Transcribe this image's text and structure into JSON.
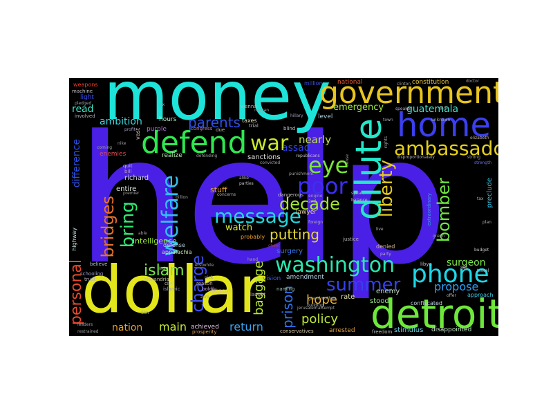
{
  "background": "#000000",
  "words": [
    {
      "text": "help",
      "color": "#4a1fe6"
    },
    {
      "text": "money",
      "color": "#1de3d8"
    },
    {
      "text": "dollar",
      "color": "#e3e61a"
    },
    {
      "text": "detroit",
      "color": "#6de83a"
    },
    {
      "text": "government",
      "color": "#e8c51e"
    },
    {
      "text": "home",
      "color": "#3b3ff0"
    },
    {
      "text": "defend",
      "color": "#2ee84f"
    },
    {
      "text": "dilute",
      "color": "#24e8c9"
    },
    {
      "text": "ambassador",
      "color": "#e6d01a"
    },
    {
      "text": "washington",
      "color": "#29e8b0"
    },
    {
      "text": "phone",
      "color": "#1ed6e6"
    },
    {
      "text": "summer",
      "color": "#3540ef"
    },
    {
      "text": "poor",
      "color": "#3c2ff0"
    },
    {
      "text": "eye",
      "color": "#7be63a"
    },
    {
      "text": "war",
      "color": "#c7e82a"
    },
    {
      "text": "welfare",
      "color": "#2fc0ee"
    },
    {
      "text": "message",
      "color": "#21d8e0"
    },
    {
      "text": "decade",
      "color": "#a6e634"
    },
    {
      "text": "liberty",
      "color": "#e6cb1e"
    },
    {
      "text": "bomber",
      "color": "#6ee83f"
    },
    {
      "text": "bring",
      "color": "#2ee874"
    },
    {
      "text": "bridges",
      "color": "#e8712a"
    },
    {
      "text": "personal",
      "color": "#e84a2a"
    },
    {
      "text": "islam",
      "color": "#7ae84a"
    },
    {
      "text": "charge",
      "color": "#3d4df0"
    },
    {
      "text": "parents",
      "color": "#2f4ee8"
    },
    {
      "text": "putting",
      "color": "#e6d830"
    },
    {
      "text": "prison",
      "color": "#2a73f0"
    },
    {
      "text": "policy",
      "color": "#c0e83a"
    },
    {
      "text": "hope",
      "color": "#e8b02a"
    },
    {
      "text": "return",
      "color": "#38a3ef"
    },
    {
      "text": "main",
      "color": "#c6e835"
    },
    {
      "text": "nation",
      "color": "#e8a02a"
    },
    {
      "text": "surgeon",
      "color": "#7ce84a"
    },
    {
      "text": "propose",
      "color": "#2d9ef0"
    },
    {
      "text": "baggage",
      "color": "#b9e833"
    },
    {
      "text": "emergency",
      "color": "#a2e83a"
    },
    {
      "text": "guatemala",
      "color": "#3ee8d0"
    },
    {
      "text": "nearly",
      "color": "#c0e04a"
    },
    {
      "text": "assad",
      "color": "#3042e8"
    },
    {
      "text": "ambition",
      "color": "#3cd8e0"
    },
    {
      "text": "read",
      "color": "#3ee8c8"
    },
    {
      "text": "difference",
      "color": "#2e52e8"
    },
    {
      "text": "watch",
      "color": "#d9e83a"
    },
    {
      "text": "surgery",
      "color": "#3a7cf0"
    },
    {
      "text": "intelligence",
      "color": "#9ce83a"
    },
    {
      "text": "stuff",
      "color": "#e6a030"
    },
    {
      "text": "entire",
      "color": "#e0e8e0"
    },
    {
      "text": "richard",
      "color": "#d0d0e8"
    },
    {
      "text": "sanctions",
      "color": "#e0e0e0"
    },
    {
      "text": "lawyer",
      "color": "#e8d0a0"
    },
    {
      "text": "hours",
      "color": "#b0e8c0"
    },
    {
      "text": "purple",
      "color": "#b070e0"
    },
    {
      "text": "realize",
      "color": "#b0e8b0"
    },
    {
      "text": "enemies",
      "color": "#e84a4a"
    },
    {
      "text": "constitution",
      "color": "#e8c83a"
    },
    {
      "text": "national",
      "color": "#e85a2a"
    },
    {
      "text": "million",
      "color": "#3a50e8"
    },
    {
      "text": "weapons",
      "color": "#e8402a"
    },
    {
      "text": "light",
      "color": "#3a4af0"
    },
    {
      "text": "level",
      "color": "#b0d0e0"
    },
    {
      "text": "taxes",
      "color": "#e0e0b0"
    },
    {
      "text": "preclude",
      "color": "#3ac0e0"
    },
    {
      "text": "extraordinary",
      "color": "#3a9ee0"
    },
    {
      "text": "denied",
      "color": "#e0c0a0"
    },
    {
      "text": "stood",
      "color": "#9ae88a"
    },
    {
      "text": "rate",
      "color": "#e0e0b0"
    },
    {
      "text": "enemy",
      "color": "#c0e0c0"
    },
    {
      "text": "amendment",
      "color": "#b0d0e0"
    },
    {
      "text": "vision",
      "color": "#3a60f0"
    },
    {
      "text": "confiscated",
      "color": "#c0d0e8"
    },
    {
      "text": "approach",
      "color": "#3ac8e0"
    },
    {
      "text": "stimulus",
      "color": "#6ad0e0"
    },
    {
      "text": "disappointed",
      "color": "#c0e0c0"
    },
    {
      "text": "arrested",
      "color": "#e8a040"
    },
    {
      "text": "conservatives",
      "color": "#d0c0a0"
    },
    {
      "text": "achieved",
      "color": "#e0c0e0"
    },
    {
      "text": "prosperity",
      "color": "#e0a060"
    },
    {
      "text": "defense",
      "color": "#b0d0e0"
    },
    {
      "text": "appalachia",
      "color": "#c0e0b0"
    },
    {
      "text": "probably",
      "color": "#e8a030"
    },
    {
      "text": "beacon",
      "color": "#d0c0a0"
    },
    {
      "text": "vast",
      "color": "#e0c0c0"
    },
    {
      "text": "quit",
      "color": "#c0c0c0"
    },
    {
      "text": "bill",
      "color": "#c0a0a0"
    },
    {
      "text": "highway",
      "color": "#c0e0e0"
    },
    {
      "text": "believe",
      "color": "#b0c0d0"
    },
    {
      "text": "schooling",
      "color": "#a0a0d0"
    },
    {
      "text": "trust",
      "color": "#b0b0c0"
    },
    {
      "text": "iran",
      "color": "#e0e0b0"
    },
    {
      "text": "civil",
      "color": "#c0c0d0"
    },
    {
      "text": "islamic",
      "color": "#a0a0c0"
    },
    {
      "text": "alexandria",
      "color": "#c0c0a0"
    },
    {
      "text": "boldly",
      "color": "#c0a0d0"
    },
    {
      "text": "reason",
      "color": "#c0b0a0"
    },
    {
      "text": "laught",
      "color": "#c0b0b0"
    },
    {
      "text": "naming",
      "color": "#a0c0b0"
    },
    {
      "text": "freedom",
      "color": "#c0c0c0"
    },
    {
      "text": "5th",
      "color": "#a0c0a0"
    },
    {
      "text": "machine",
      "color": "#c0c0c0"
    },
    {
      "text": "involved",
      "color": "#b0b0c0"
    },
    {
      "text": "pledged",
      "color": "#a0a0a0"
    },
    {
      "text": "profit",
      "color": "#a0a0c0"
    },
    {
      "text": "six",
      "color": "#a0a0a0"
    },
    {
      "text": "vienna",
      "color": "#b0c0b0"
    },
    {
      "text": "congress",
      "color": "#c080c0"
    },
    {
      "text": "due",
      "color": "#c0c0b0"
    },
    {
      "text": "trial",
      "color": "#c0c0c0"
    },
    {
      "text": "blind",
      "color": "#c0c0c0"
    },
    {
      "text": "hillary",
      "color": "#a0a0c0"
    },
    {
      "text": "speaker",
      "color": "#b0b0d0"
    },
    {
      "text": "town",
      "color": "#a0a0b0"
    },
    {
      "text": "unknown",
      "color": "#a0b0c0"
    },
    {
      "text": "elizabeth",
      "color": "#c0b0a0"
    },
    {
      "text": "strong",
      "color": "#a0a0a0"
    },
    {
      "text": "strength",
      "color": "#6a70e0"
    },
    {
      "text": "republicans",
      "color": "#c0c0c0"
    },
    {
      "text": "balance",
      "color": "#c0c0b0"
    },
    {
      "text": "disproportionately",
      "color": "#b0b0c0"
    },
    {
      "text": "syrian",
      "color": "#a0b0c0"
    },
    {
      "text": "punishment",
      "color": "#a0a0a0"
    },
    {
      "text": "dangerous",
      "color": "#c0c0c0"
    },
    {
      "text": "parties",
      "color": "#c0c0c0"
    },
    {
      "text": "alike",
      "color": "#b0b0b0"
    },
    {
      "text": "concerns",
      "color": "#b0b0b0"
    },
    {
      "text": "defending",
      "color": "#a0a0a0"
    },
    {
      "text": "justice",
      "color": "#b0b0b0"
    },
    {
      "text": "party",
      "color": "#b0b0b0"
    },
    {
      "text": "live",
      "color": "#b0b0b0"
    },
    {
      "text": "libya",
      "color": "#c0c0c0"
    },
    {
      "text": "budget",
      "color": "#c0c0c0"
    },
    {
      "text": "offer",
      "color": "#b0b0b0"
    },
    {
      "text": "travel",
      "color": "#c0c0c0"
    },
    {
      "text": "80s",
      "color": "#b0b0b0"
    },
    {
      "text": "tax",
      "color": "#b0b0b0"
    },
    {
      "text": "plan",
      "color": "#b0b0b0"
    },
    {
      "text": "green",
      "color": "#a0a0a0"
    },
    {
      "text": "clinton",
      "color": "#a0a0a0"
    },
    {
      "text": "doctor",
      "color": "#a0a0a0"
    },
    {
      "text": "building",
      "color": "#b0b0b0"
    },
    {
      "text": "grandmother",
      "color": "#a0a0a0"
    },
    {
      "text": "2nd",
      "color": "#a0a0a0"
    },
    {
      "text": "foreign",
      "color": "#b0b0b0"
    },
    {
      "text": "engine",
      "color": "#a0a0a0"
    },
    {
      "text": "cheer",
      "color": "#a04040"
    },
    {
      "text": "hand",
      "color": "#a0a0a0"
    },
    {
      "text": "pick",
      "color": "#a0a0a0"
    },
    {
      "text": "erstwhile",
      "color": "#a0a0a0"
    },
    {
      "text": "zero",
      "color": "#a0a0a0"
    },
    {
      "text": "nike",
      "color": "#a0a0a0"
    },
    {
      "text": "coming",
      "color": "#a0a0a0"
    },
    {
      "text": "premier",
      "color": "#a0a0a0"
    },
    {
      "text": "able",
      "color": "#a0a0a0"
    },
    {
      "text": "billion",
      "color": "#a0a0a0"
    },
    {
      "text": "jerusalem",
      "color": "#a0a0a0"
    },
    {
      "text": "attempt",
      "color": "#a0a0a0"
    },
    {
      "text": "leaders",
      "color": "#a0a0a0"
    },
    {
      "text": "restrained",
      "color": "#a0a0a0"
    },
    {
      "text": "rights",
      "color": "#a0a0a0"
    },
    {
      "text": "sense",
      "color": "#a0a0a0"
    },
    {
      "text": "convicted",
      "color": "#a0a0a0"
    },
    {
      "text": "reagan",
      "color": "#a0a0a0"
    },
    {
      "text": "gun",
      "color": "#a0a0a0"
    }
  ]
}
